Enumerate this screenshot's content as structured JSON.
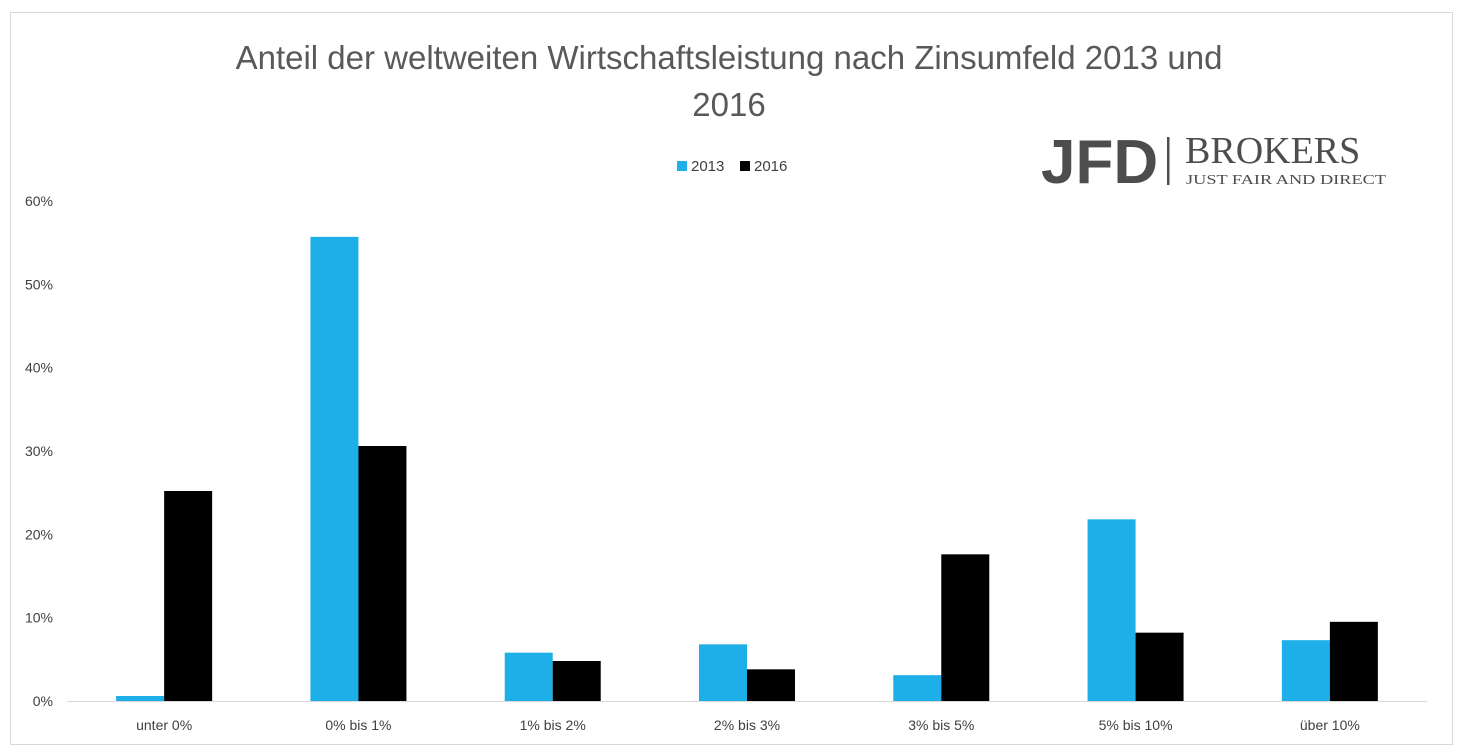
{
  "chart_data": {
    "type": "bar",
    "title_lines": [
      "Anteil der weltweiten Wirtschaftsleistung nach Zinsumfeld 2013 und",
      "2016"
    ],
    "categories": [
      "unter 0%",
      "0% bis 1%",
      "1% bis 2%",
      "2% bis 3%",
      "3% bis 5%",
      "5% bis 10%",
      "über 10%"
    ],
    "series": [
      {
        "name": "2013",
        "color": "#1eaee8",
        "values": [
          0.6,
          55.7,
          5.8,
          6.8,
          3.1,
          21.8,
          7.3
        ]
      },
      {
        "name": "2016",
        "color": "#000000",
        "values": [
          25.2,
          30.6,
          4.8,
          3.8,
          17.6,
          8.2,
          9.5
        ]
      }
    ],
    "y_ticks": [
      "0%",
      "10%",
      "20%",
      "30%",
      "40%",
      "50%",
      "60%"
    ],
    "ylim": [
      0,
      60
    ],
    "grid": false,
    "legend_position": "top-center"
  },
  "logo": {
    "wordmark": "JFD",
    "name": "BROKERS",
    "tagline": "JUST FAIR AND DIRECT"
  }
}
